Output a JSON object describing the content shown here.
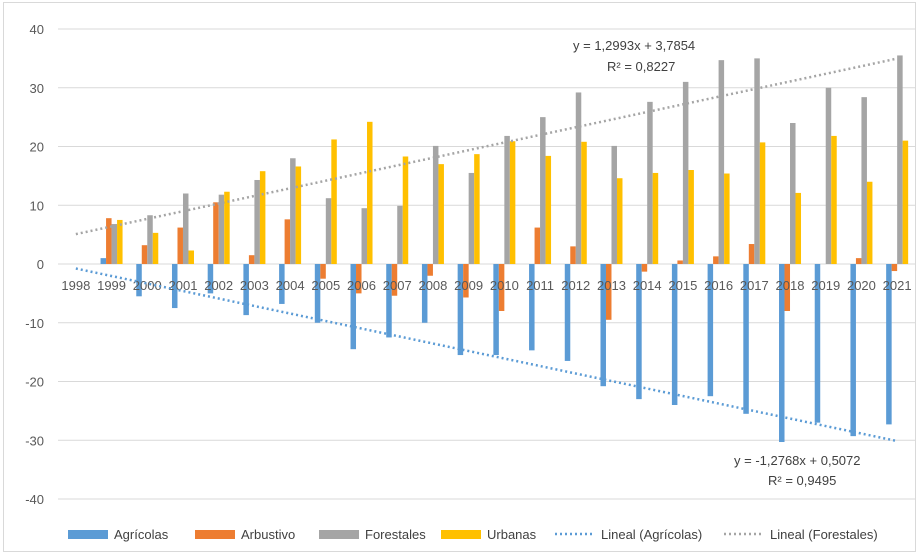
{
  "chart_data": {
    "type": "bar",
    "categories": [
      "1998",
      "1999",
      "2000",
      "2001",
      "2002",
      "2003",
      "2004",
      "2005",
      "2006",
      "2007",
      "2008",
      "2009",
      "2010",
      "2011",
      "2012",
      "2013",
      "2014",
      "2015",
      "2016",
      "2017",
      "2018",
      "2019",
      "2020",
      "2021"
    ],
    "ylim": [
      -40,
      40
    ],
    "yticks": [
      "40",
      "30",
      "20",
      "10",
      "0",
      "-10",
      "-20",
      "-30",
      "-40"
    ],
    "grid": true,
    "legend_position": "bottom",
    "series": [
      {
        "name": "Agrícolas",
        "color": "#5B9BD5",
        "values": [
          0,
          1.0,
          -5.5,
          -7.5,
          -5.0,
          -8.7,
          -6.8,
          -10.0,
          -14.5,
          -12.5,
          -10.0,
          -15.5,
          -15.5,
          -14.7,
          -16.5,
          -20.8,
          -23.0,
          -24.0,
          -22.5,
          -25.5,
          -30.3,
          -27.0,
          -29.3,
          -27.3
        ]
      },
      {
        "name": "Arbustivo",
        "color": "#ED7D31",
        "values": [
          0,
          7.8,
          3.2,
          6.2,
          10.5,
          1.5,
          7.6,
          -2.5,
          -5.0,
          -5.4,
          -2.0,
          -5.7,
          -8.0,
          6.2,
          3.0,
          -9.5,
          -1.3,
          0.6,
          1.3,
          3.4,
          -8.0,
          0,
          1.0,
          -1.2
        ]
      },
      {
        "name": "Forestales",
        "color": "#A5A5A5",
        "values": [
          0,
          6.8,
          8.3,
          12.0,
          11.8,
          14.3,
          18.0,
          11.2,
          9.5,
          9.9,
          20.1,
          15.5,
          21.8,
          25.0,
          29.2,
          20.1,
          27.6,
          31.0,
          34.7,
          35.0,
          24.0,
          30.0,
          28.4,
          35.5
        ]
      },
      {
        "name": "Urbanas",
        "color": "#FFC000",
        "values": [
          0,
          7.5,
          5.3,
          2.3,
          12.3,
          15.8,
          16.6,
          21.2,
          24.2,
          18.3,
          17.0,
          18.7,
          20.9,
          18.4,
          20.8,
          14.6,
          15.5,
          16.0,
          15.4,
          20.7,
          12.1,
          21.8,
          14.0,
          21.0
        ]
      }
    ],
    "trendlines": [
      {
        "name": "Lineal (Agrícolas)",
        "color": "#5B9BD5",
        "equation": "y = -1,2768x + 0,5072",
        "r2": "R² = 0,9495",
        "slope": -1.2768,
        "intercept": 0.5072
      },
      {
        "name": "Lineal (Forestales)",
        "color": "#A5A5A5",
        "equation": "y = 1,2993x + 3,7854",
        "r2": "R² = 0,8227",
        "slope": 1.2993,
        "intercept": 3.7854
      }
    ]
  }
}
